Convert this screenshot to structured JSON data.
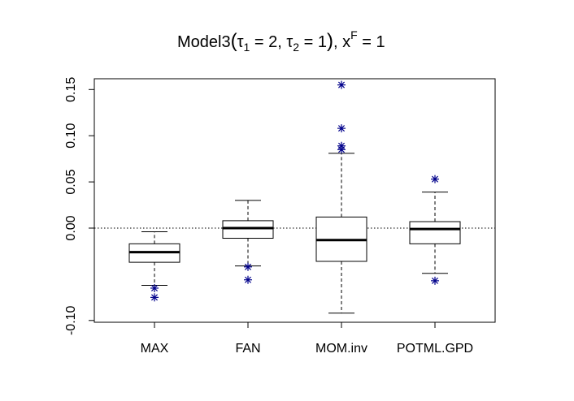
{
  "chart_data": {
    "type": "box",
    "title": {
      "prefix": "Model3",
      "tau1": "τ",
      "tau1_sub": "1",
      "tau1_val": " = 2, ",
      "tau2": "τ",
      "tau2_sub": "2",
      "tau2_val": " = 1",
      "suffix": ", x",
      "x_sup": "F",
      "x_val": " = 1",
      "open_paren": "(",
      "close_paren": ")"
    },
    "xlabel": "",
    "ylabel": "",
    "ylim": [
      -0.1,
      0.16
    ],
    "yticks": [
      -0.1,
      0.0,
      0.05,
      0.1,
      0.15
    ],
    "ytick_labels": [
      "-0.10",
      "0.00",
      "0.05",
      "0.10",
      "0.15"
    ],
    "reference_line": {
      "y": 0,
      "style": "dotted"
    },
    "outlier_color": "#00008B",
    "categories": [
      "MAX",
      "FAN",
      "MOM.inv",
      "POTML.GPD"
    ],
    "boxes": [
      {
        "name": "MAX",
        "whisker_low": -0.062,
        "q1": -0.037,
        "median": -0.026,
        "q3": -0.017,
        "whisker_high": -0.004,
        "outliers": [
          -0.065,
          -0.075
        ]
      },
      {
        "name": "FAN",
        "whisker_low": -0.041,
        "q1": -0.011,
        "median": 0.0,
        "q3": 0.008,
        "whisker_high": 0.03,
        "outliers": [
          -0.042,
          -0.056
        ]
      },
      {
        "name": "MOM.inv",
        "whisker_low": -0.092,
        "q1": -0.036,
        "median": -0.013,
        "q3": 0.012,
        "whisker_high": 0.081,
        "outliers": [
          0.155,
          0.108,
          0.089,
          0.085
        ]
      },
      {
        "name": "POTML.GPD",
        "whisker_low": -0.049,
        "q1": -0.017,
        "median": -0.001,
        "q3": 0.007,
        "whisker_high": 0.039,
        "outliers": [
          0.053,
          -0.057
        ]
      }
    ]
  }
}
